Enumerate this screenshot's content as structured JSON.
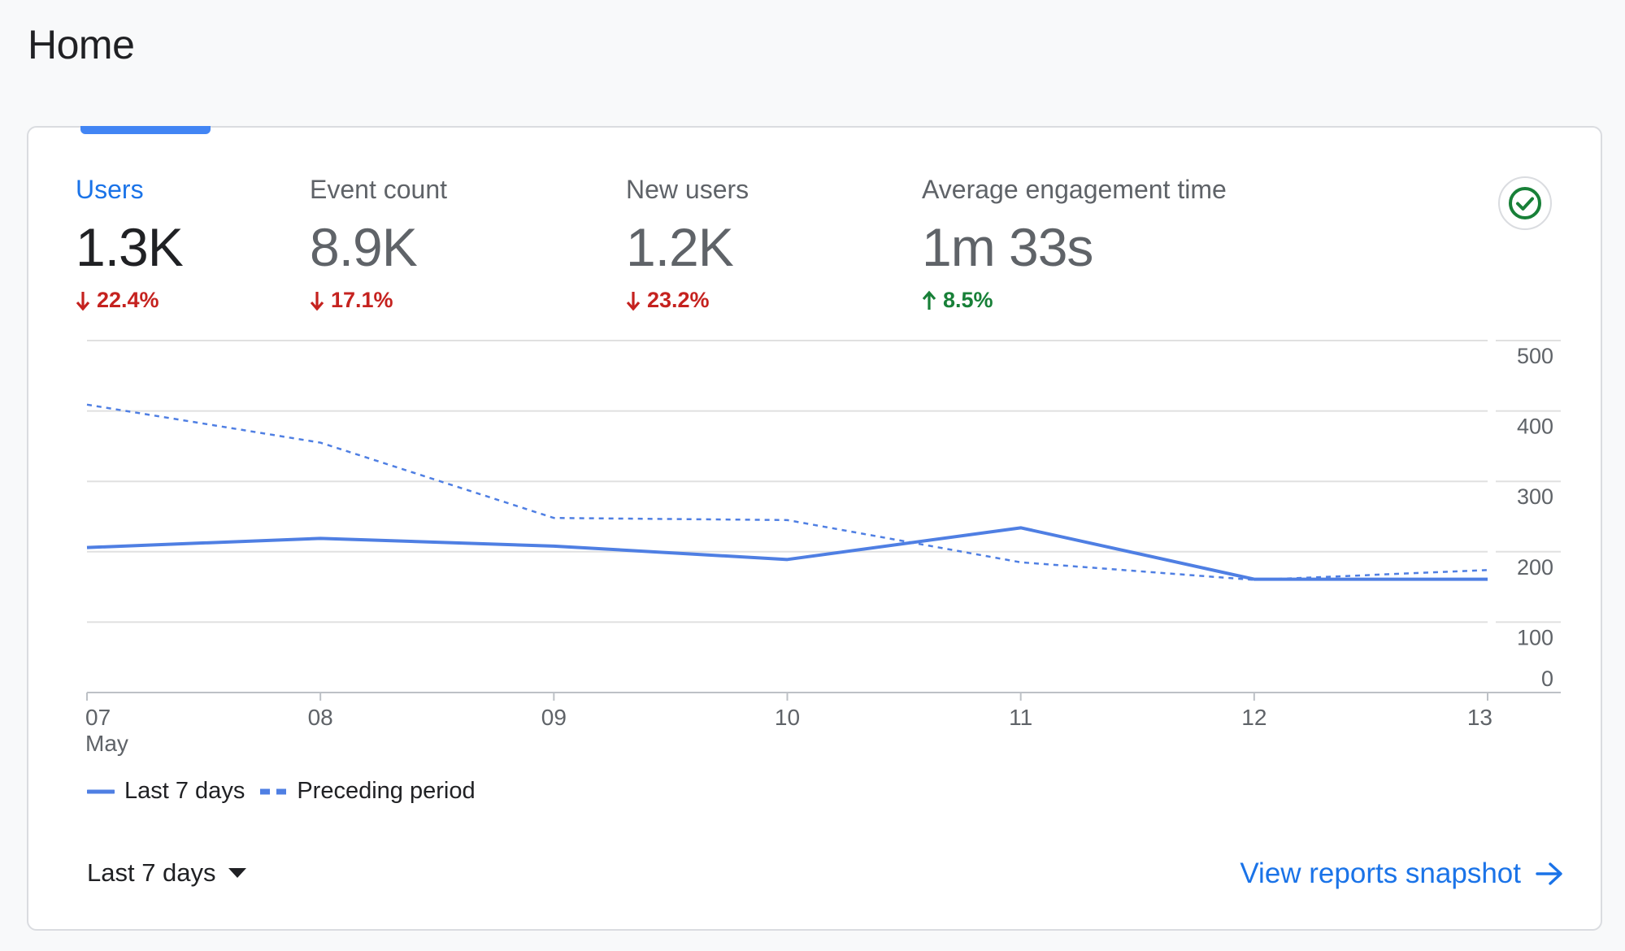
{
  "page": {
    "title": "Home"
  },
  "metrics": [
    {
      "label": "Users",
      "value": "1.3K",
      "change": "22.4%",
      "direction": "down",
      "active": true
    },
    {
      "label": "Event count",
      "value": "8.9K",
      "change": "17.1%",
      "direction": "down",
      "active": false
    },
    {
      "label": "New users",
      "value": "1.2K",
      "change": "23.2%",
      "direction": "down",
      "active": false
    },
    {
      "label": "Average engagement time",
      "value": "1m 33s",
      "change": "8.5%",
      "direction": "up",
      "active": false
    }
  ],
  "icons": {
    "status": "check-circle-icon",
    "dropdown": "caret-down-icon",
    "link": "arrow-right-icon",
    "down": "arrow-down-icon",
    "up": "arrow-up-icon"
  },
  "colors": {
    "accent": "#1a73e8",
    "series": "#4f7fe3",
    "down": "#c5221f",
    "up": "#188038",
    "check": "#188038"
  },
  "chart_data": {
    "type": "line",
    "title": "",
    "xlabel": "",
    "ylabel": "",
    "x": [
      "07",
      "08",
      "09",
      "10",
      "11",
      "12",
      "13"
    ],
    "x_sublabel": {
      "index": 0,
      "text": "May"
    },
    "y_ticks": [
      0,
      100,
      200,
      300,
      400,
      500
    ],
    "ylim": [
      0,
      500
    ],
    "y_axis_side": "right",
    "grid": true,
    "legend_position": "bottom-left",
    "series": [
      {
        "name": "Last 7 days",
        "style": "solid",
        "values": [
          206,
          219,
          208,
          189,
          234,
          161,
          161
        ]
      },
      {
        "name": "Preceding period",
        "style": "dashed",
        "values": [
          409,
          355,
          248,
          245,
          185,
          160,
          174
        ]
      }
    ]
  },
  "footer": {
    "date_range": "Last 7 days",
    "snapshot_link": "View reports snapshot"
  }
}
